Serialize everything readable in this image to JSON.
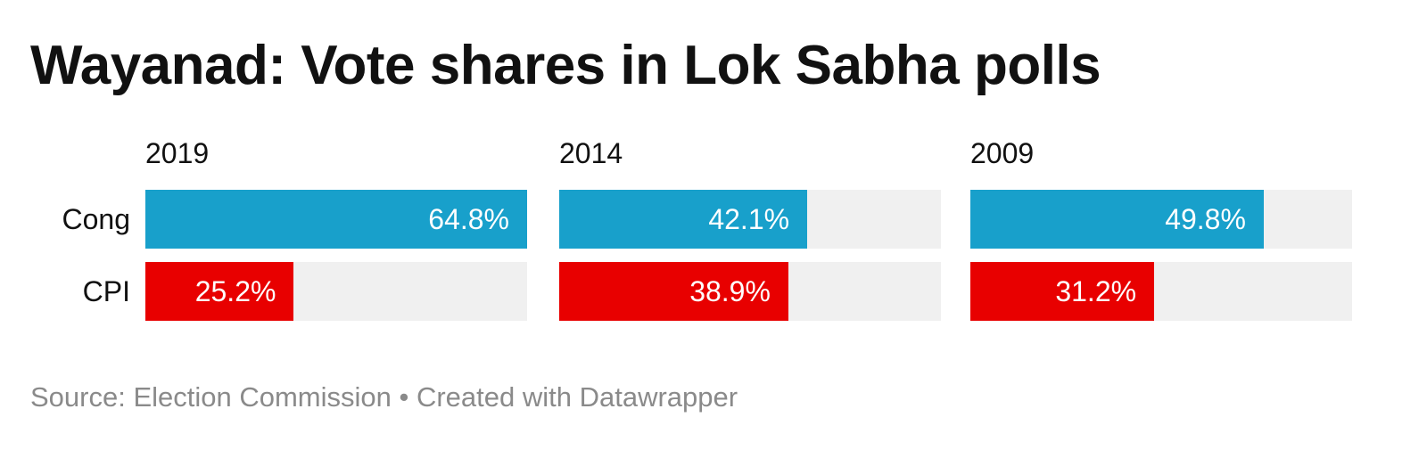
{
  "chart_data": {
    "type": "bar",
    "title": "Wayanad: Vote shares in Lok Sabha polls",
    "categories": [
      "Cong",
      "CPI"
    ],
    "panels": [
      {
        "year": "2019",
        "values": [
          64.8,
          25.2
        ],
        "labels": [
          "64.8%",
          "25.2%"
        ]
      },
      {
        "year": "2014",
        "values": [
          42.1,
          38.9
        ],
        "labels": [
          "42.1%",
          "38.9%"
        ]
      },
      {
        "year": "2009",
        "values": [
          49.8,
          31.2
        ],
        "labels": [
          "49.8%",
          "31.2%"
        ]
      }
    ],
    "xlim": [
      0,
      64.8
    ],
    "colors": {
      "Cong": "#18a0cb",
      "CPI": "#e80000",
      "track": "#f0f0f0"
    },
    "source": "Source: Election Commission • Created with Datawrapper"
  }
}
